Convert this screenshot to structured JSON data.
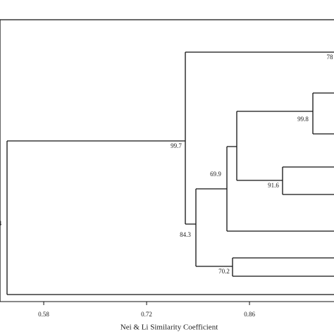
{
  "chart_data": {
    "type": "dendrogram",
    "xlabel": "Nei & Li Similarity Coefficient",
    "xlim": [
      0.5205,
      0.975
    ],
    "xticks": [
      0.58,
      0.72,
      0.86
    ],
    "annotations": [
      "4",
      "99.7",
      "78",
      "84.3",
      "69.9",
      "99.8",
      "91.6",
      "70.2"
    ]
  }
}
